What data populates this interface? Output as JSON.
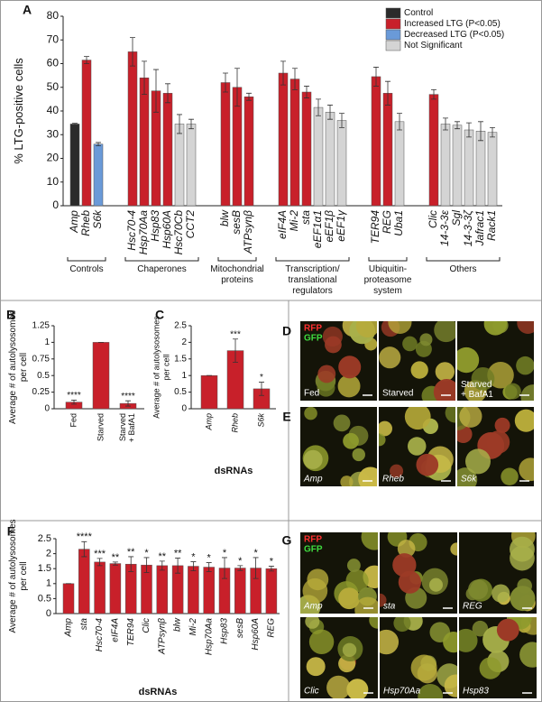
{
  "chart_data": [
    {
      "type": "bar",
      "panel_label": "A",
      "y_label": [
        "% LTG-positive cells"
      ],
      "category_style": "italic",
      "categories": [
        "Amp",
        "Rheb",
        "S6k",
        "Hsc70-4",
        "Hsp70Aa",
        "Hsp83",
        "Hsp60A",
        "Hsc70Cb",
        "CCT2",
        "blw",
        "sesB",
        "ATPsynβ",
        "eIF4A",
        "Mi-2",
        "sta",
        "eEF1α1",
        "eEF1β",
        "eEF1γ",
        "TER94",
        "REG",
        "Uba1",
        "Clic",
        "14-3-3ε",
        "Sgl",
        "14-3-3ζ",
        "Jafrac1",
        "Rack1"
      ],
      "series": [
        {
          "name": "Control",
          "color": "#2b2b2b",
          "values": [
            34.5,
            null,
            null,
            null,
            null,
            null,
            null,
            null,
            null,
            null,
            null,
            null,
            null,
            null,
            null,
            null,
            null,
            null,
            null,
            null,
            null,
            null,
            null,
            null,
            null,
            null,
            null
          ],
          "errors": [
            0.3,
            null,
            null,
            null,
            null,
            null,
            null,
            null,
            null,
            null,
            null,
            null,
            null,
            null,
            null,
            null,
            null,
            null,
            null,
            null,
            null,
            null,
            null,
            null,
            null,
            null,
            null
          ]
        },
        {
          "name": "Increased LTG (P<0.05)",
          "color": "#c8202a",
          "values": [
            null,
            61.5,
            null,
            65,
            54,
            48.5,
            47.5,
            null,
            null,
            52,
            50,
            46,
            56,
            53.5,
            48,
            null,
            null,
            null,
            54.5,
            47.5,
            null,
            47,
            null,
            null,
            null,
            null,
            null
          ],
          "errors": [
            null,
            1.5,
            null,
            6,
            7,
            9,
            4,
            null,
            null,
            4,
            8,
            1.5,
            5,
            4.5,
            2.5,
            null,
            null,
            null,
            4,
            5,
            null,
            2,
            null,
            null,
            null,
            null,
            null
          ]
        },
        {
          "name": "Decreased LTG (P<0.05)",
          "color": "#6a9ad8",
          "values": [
            null,
            null,
            26,
            null,
            null,
            null,
            null,
            null,
            null,
            null,
            null,
            null,
            null,
            null,
            null,
            null,
            null,
            null,
            null,
            null,
            null,
            null,
            null,
            null,
            null,
            null,
            null
          ],
          "errors": [
            null,
            null,
            0.7,
            null,
            null,
            null,
            null,
            null,
            null,
            null,
            null,
            null,
            null,
            null,
            null,
            null,
            null,
            null,
            null,
            null,
            null,
            null,
            null,
            null,
            null,
            null,
            null
          ]
        },
        {
          "name": "Not Significant",
          "color": "#d4d4d4",
          "values": [
            null,
            null,
            null,
            null,
            null,
            null,
            null,
            34.5,
            34.5,
            null,
            null,
            null,
            null,
            null,
            null,
            41.5,
            39.5,
            36,
            null,
            null,
            35.5,
            null,
            34.5,
            34,
            32,
            31.5,
            31
          ],
          "errors": [
            null,
            null,
            null,
            null,
            null,
            null,
            null,
            4,
            2,
            null,
            null,
            null,
            null,
            null,
            null,
            3.5,
            3,
            3,
            null,
            null,
            3.5,
            null,
            2.5,
            1.5,
            3,
            4,
            2
          ]
        }
      ],
      "groups": [
        {
          "label": [
            "Controls"
          ],
          "count": 3
        },
        {
          "label": [
            "Chaperones"
          ],
          "count": 6
        },
        {
          "label": [
            "Mitochondrial",
            "proteins"
          ],
          "count": 3
        },
        {
          "label": [
            "Transcription/",
            "translational",
            "regulators"
          ],
          "count": 6
        },
        {
          "label": [
            "Ubiquitin-",
            "proteasome",
            "system"
          ],
          "count": 3
        },
        {
          "label": [
            "Others"
          ],
          "count": 6
        }
      ],
      "ylim": [
        0,
        80
      ],
      "yticks": [
        0,
        10,
        20,
        30,
        40,
        50,
        60,
        70,
        80
      ],
      "legend": "top-right"
    },
    {
      "type": "bar",
      "panel_label": "B",
      "y_label": [
        "Average # of autolysosomes",
        "per cell"
      ],
      "color": "#c8202a",
      "categories": [
        "Fed",
        "Starved",
        [
          "Starved",
          "+ BafA1"
        ]
      ],
      "values": [
        0.1,
        1,
        0.08
      ],
      "errors": [
        0.03,
        0,
        0.04
      ],
      "annotations": [
        "****",
        null,
        "****"
      ],
      "ylim": [
        0,
        1.25
      ],
      "yticks": [
        0,
        0.25,
        0.5,
        0.75,
        1,
        1.25
      ]
    },
    {
      "type": "bar",
      "panel_label": "C",
      "y_label": [
        "Average # of autolysosomes",
        "per cell"
      ],
      "x_label": "dsRNAs",
      "color": "#c8202a",
      "category_style": "italic",
      "categories": [
        "Amp",
        "Rheb",
        "S6k"
      ],
      "values": [
        1,
        1.75,
        0.6
      ],
      "errors": [
        0,
        0.35,
        0.2
      ],
      "annotations": [
        null,
        "***",
        "*"
      ],
      "ylim": [
        0,
        2.5
      ],
      "yticks": [
        0,
        0.5,
        1,
        1.5,
        2,
        2.5
      ]
    },
    {
      "type": "bar",
      "panel_label": "F",
      "y_label": [
        "Average # of autolysosomes",
        "per cell"
      ],
      "x_label": "dsRNAs",
      "color": "#c8202a",
      "category_style": "italic",
      "categories": [
        "Amp",
        "sta",
        "Hsc70-4",
        "eIF4A",
        "TER94",
        "Clic",
        "ATPsynβ",
        "blw",
        "Mi-2",
        "Hsp70Aa",
        "Hsp83",
        "sesB",
        "Hsp60A",
        "REG"
      ],
      "values": [
        1,
        2.15,
        1.72,
        1.67,
        1.65,
        1.62,
        1.6,
        1.6,
        1.58,
        1.55,
        1.52,
        1.52,
        1.52,
        1.5
      ],
      "errors": [
        0,
        0.25,
        0.12,
        0.05,
        0.25,
        0.25,
        0.15,
        0.25,
        0.15,
        0.15,
        0.35,
        0.08,
        0.35,
        0.08
      ],
      "annotations": [
        null,
        "****",
        "***",
        "**",
        "**",
        "*",
        "**",
        "**",
        "*",
        "*",
        "*",
        "*",
        "*",
        "*"
      ],
      "ylim": [
        0,
        2.5
      ],
      "yticks": [
        0,
        0.5,
        1,
        1.5,
        2,
        2.5
      ]
    }
  ],
  "image_panels": [
    {
      "panel_label": "D",
      "channels": [
        "RFP",
        "GFP"
      ],
      "captions": [
        "Fed",
        "Starved",
        [
          "Starved",
          "+ BafA1"
        ]
      ]
    },
    {
      "panel_label": "E",
      "captions": [
        "Amp",
        "Rheb",
        "S6k"
      ]
    },
    {
      "panel_label": "G",
      "channels": [
        "RFP",
        "GFP"
      ],
      "captions": [
        "Amp",
        "sta",
        "REG",
        "Clic",
        "Hsp70Aa",
        "Hsp83"
      ]
    }
  ]
}
